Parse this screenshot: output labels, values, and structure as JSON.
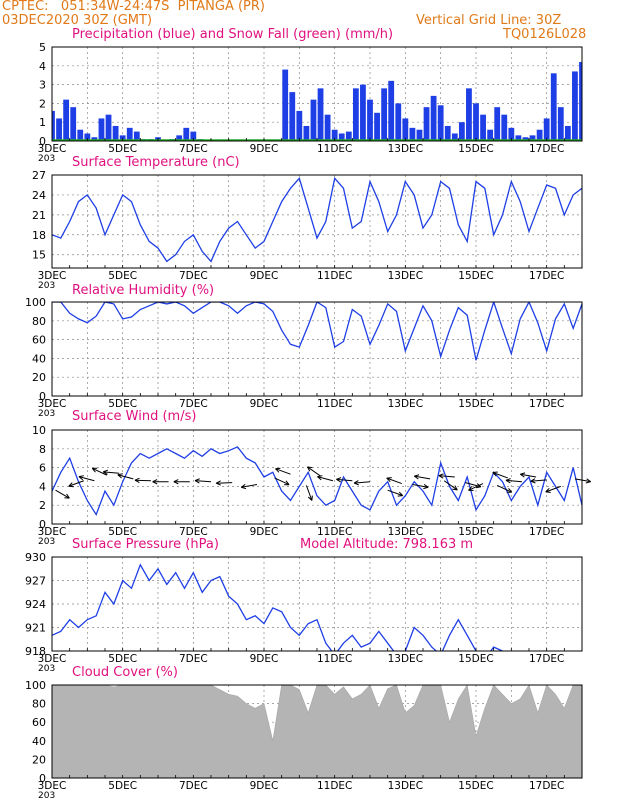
{
  "header": {
    "line1": "CPTEC:   051:34W-24:47S  PITANGA (PR)",
    "line2": "03DEC2020 30Z (GMT)",
    "grid_note": "Vertical Grid Line: 30Z",
    "code": "TQ0126L028"
  },
  "colors": {
    "header": "#e07a1a",
    "title": "#e0117f",
    "precip": "#1f3fe6",
    "snow": "#22aa22",
    "line": "#1f3fe6",
    "cloud": "#b4b4b4",
    "grid": "#888888"
  },
  "year_fragment": "203",
  "chart_data": [
    {
      "type": "bar",
      "title": "Precipitation (blue) and Snow Fall (green) (mm/h)",
      "ylim": [
        0,
        5
      ],
      "yticks": [
        "0",
        "1",
        "2",
        "3",
        "4",
        "5"
      ],
      "xlabels": [
        "3DEC",
        "5DEC",
        "7DEC",
        "9DEC",
        "11DEC",
        "13DEC",
        "15DEC",
        "17DEC"
      ],
      "series": [
        {
          "name": "Precipitation",
          "x": [
            3.0,
            3.2,
            3.4,
            3.6,
            3.8,
            4.0,
            4.2,
            4.4,
            4.6,
            4.8,
            5.0,
            5.2,
            5.4,
            5.6,
            5.8,
            6.0,
            6.2,
            6.4,
            6.6,
            6.8,
            7.0,
            7.2,
            7.4,
            7.6,
            7.8,
            8.0,
            8.2,
            8.4,
            8.6,
            8.8,
            9.0,
            9.2,
            9.4,
            9.6,
            9.8,
            10.0,
            10.2,
            10.4,
            10.6,
            10.8,
            11.0,
            11.2,
            11.4,
            11.6,
            11.8,
            12.0,
            12.2,
            12.4,
            12.6,
            12.8,
            13.0,
            13.2,
            13.4,
            13.6,
            13.8,
            14.0,
            14.2,
            14.4,
            14.6,
            14.8,
            15.0,
            15.2,
            15.4,
            15.6,
            15.8,
            16.0,
            16.2,
            16.4,
            16.6,
            16.8,
            17.0,
            17.2,
            17.4,
            17.6,
            17.8,
            18.0
          ],
          "values": [
            1.6,
            1.2,
            2.2,
            1.8,
            0.6,
            0.4,
            0.2,
            1.2,
            1.4,
            0.8,
            0.3,
            0.7,
            0.5,
            0.1,
            0.1,
            0.2,
            0.0,
            0.1,
            0.3,
            0.7,
            0.5,
            0.1,
            0.0,
            0.0,
            0.0,
            0.0,
            0.0,
            0.0,
            0.0,
            0.0,
            0.0,
            0.0,
            0.0,
            3.8,
            2.6,
            1.6,
            0.8,
            2.2,
            2.8,
            1.4,
            0.6,
            0.4,
            0.5,
            2.8,
            3.0,
            2.2,
            1.5,
            2.8,
            3.2,
            2.0,
            1.2,
            0.7,
            0.6,
            1.8,
            2.4,
            1.9,
            0.8,
            0.4,
            1.0,
            2.8,
            2.0,
            1.4,
            0.6,
            1.8,
            1.4,
            0.7,
            0.3,
            0.2,
            0.3,
            0.6,
            1.2,
            3.6,
            1.8,
            0.8,
            3.7,
            4.2
          ]
        },
        {
          "name": "Snow Fall",
          "values": [
            0.05
          ]
        }
      ]
    },
    {
      "type": "line",
      "title": "Surface Temperature (nC)",
      "ylim": [
        13,
        27
      ],
      "yticks": [
        "15",
        "18",
        "21",
        "24",
        "27"
      ],
      "xlabels": [
        "3DEC",
        "5DEC",
        "7DEC",
        "9DEC",
        "11DEC",
        "13DEC",
        "15DEC",
        "17DEC"
      ],
      "x": [
        3.0,
        3.25,
        3.5,
        3.75,
        4.0,
        4.25,
        4.5,
        4.75,
        5.0,
        5.25,
        5.5,
        5.75,
        6.0,
        6.25,
        6.5,
        6.75,
        7.0,
        7.25,
        7.5,
        7.75,
        8.0,
        8.25,
        8.5,
        8.75,
        9.0,
        9.25,
        9.5,
        9.75,
        10.0,
        10.25,
        10.5,
        10.75,
        11.0,
        11.25,
        11.5,
        11.75,
        12.0,
        12.25,
        12.5,
        12.75,
        13.0,
        13.25,
        13.5,
        13.75,
        14.0,
        14.25,
        14.5,
        14.75,
        15.0,
        15.25,
        15.5,
        15.75,
        16.0,
        16.25,
        16.5,
        16.75,
        17.0,
        17.25,
        17.5,
        17.75,
        18.0
      ],
      "values": [
        18,
        17.5,
        20,
        23,
        24,
        22,
        18,
        21,
        24,
        23,
        19.5,
        17,
        16,
        14,
        15,
        17,
        18,
        15.5,
        14,
        17,
        19,
        20,
        18,
        16,
        17,
        20,
        23,
        25,
        26.5,
        22,
        17.5,
        20,
        26.5,
        25,
        19,
        20,
        26,
        23,
        18.5,
        21,
        26,
        24,
        19,
        21,
        26,
        25,
        19.5,
        17,
        26,
        25,
        18,
        21,
        26,
        23,
        18.5,
        22,
        25.5,
        25,
        21,
        24,
        25
      ]
    },
    {
      "type": "line",
      "title": "Relative Humidity (%)",
      "ylim": [
        0,
        100
      ],
      "yticks": [
        "0",
        "20",
        "40",
        "60",
        "80",
        "100"
      ],
      "xlabels": [
        "3DEC",
        "5DEC",
        "7DEC",
        "9DEC",
        "11DEC",
        "13DEC",
        "15DEC",
        "17DEC"
      ],
      "x": [
        3.0,
        3.25,
        3.5,
        3.75,
        4.0,
        4.25,
        4.5,
        4.75,
        5.0,
        5.25,
        5.5,
        5.75,
        6.0,
        6.25,
        6.5,
        6.75,
        7.0,
        7.25,
        7.5,
        7.75,
        8.0,
        8.25,
        8.5,
        8.75,
        9.0,
        9.25,
        9.5,
        9.75,
        10.0,
        10.25,
        10.5,
        10.75,
        11.0,
        11.25,
        11.5,
        11.75,
        12.0,
        12.25,
        12.5,
        12.75,
        13.0,
        13.25,
        13.5,
        13.75,
        14.0,
        14.25,
        14.5,
        14.75,
        15.0,
        15.25,
        15.5,
        15.75,
        16.0,
        16.25,
        16.5,
        16.75,
        17.0,
        17.25,
        17.5,
        17.75,
        18.0
      ],
      "values": [
        100,
        100,
        88,
        82,
        78,
        85,
        100,
        98,
        82,
        84,
        92,
        96,
        100,
        98,
        100,
        96,
        88,
        94,
        100,
        100,
        96,
        88,
        96,
        100,
        98,
        90,
        70,
        55,
        52,
        75,
        100,
        94,
        52,
        58,
        92,
        85,
        55,
        75,
        98,
        90,
        48,
        72,
        96,
        80,
        42,
        70,
        94,
        86,
        38,
        70,
        100,
        72,
        45,
        82,
        100,
        78,
        48,
        82,
        98,
        72,
        98
      ]
    },
    {
      "type": "line",
      "title": "Surface Wind (m/s)",
      "ylim": [
        0,
        10
      ],
      "yticks": [
        "0",
        "2",
        "4",
        "6",
        "8",
        "10"
      ],
      "xlabels": [
        "3DEC",
        "5DEC",
        "7DEC",
        "9DEC",
        "11DEC",
        "13DEC",
        "15DEC",
        "17DEC"
      ],
      "x": [
        3.0,
        3.25,
        3.5,
        3.75,
        4.0,
        4.25,
        4.5,
        4.75,
        5.0,
        5.25,
        5.5,
        5.75,
        6.0,
        6.25,
        6.5,
        6.75,
        7.0,
        7.25,
        7.5,
        7.75,
        8.0,
        8.25,
        8.5,
        8.75,
        9.0,
        9.25,
        9.5,
        9.75,
        10.0,
        10.25,
        10.5,
        10.75,
        11.0,
        11.25,
        11.5,
        11.75,
        12.0,
        12.25,
        12.5,
        12.75,
        13.0,
        13.25,
        13.5,
        13.75,
        14.0,
        14.25,
        14.5,
        14.75,
        15.0,
        15.25,
        15.5,
        15.75,
        16.0,
        16.25,
        16.5,
        16.75,
        17.0,
        17.25,
        17.5,
        17.75,
        18.0
      ],
      "values": [
        3.5,
        5.5,
        7.0,
        4.5,
        2.5,
        1.0,
        3.5,
        2.0,
        4.5,
        6.5,
        7.5,
        7.0,
        7.5,
        8.0,
        7.5,
        7.0,
        7.8,
        7.2,
        8.0,
        7.5,
        7.8,
        8.2,
        7.0,
        6.5,
        5.0,
        5.5,
        3.5,
        2.5,
        4.0,
        5.5,
        3.0,
        2.0,
        2.5,
        5.0,
        3.5,
        2.0,
        1.5,
        3.5,
        4.5,
        2.0,
        3.0,
        4.5,
        3.5,
        2.0,
        6.5,
        4.0,
        2.5,
        5.0,
        1.5,
        3.0,
        5.5,
        4.5,
        2.5,
        4.0,
        5.0,
        2.0,
        5.5,
        4.0,
        2.5,
        6.0,
        2.0
      ],
      "vectors": [
        [
          3.1,
          3.6,
          -30
        ],
        [
          3.9,
          4.6,
          200
        ],
        [
          4.2,
          4.6,
          165
        ],
        [
          4.55,
          5.2,
          155
        ],
        [
          4.9,
          5.4,
          175
        ],
        [
          5.3,
          4.8,
          165
        ],
        [
          5.8,
          4.6,
          178
        ],
        [
          6.3,
          4.5,
          180
        ],
        [
          6.9,
          4.5,
          180
        ],
        [
          7.5,
          4.5,
          176
        ],
        [
          8.1,
          4.4,
          182
        ],
        [
          8.8,
          4.2,
          190
        ],
        [
          9.3,
          4.9,
          -25
        ],
        [
          9.75,
          5.3,
          160
        ],
        [
          10.2,
          4.1,
          -70
        ],
        [
          10.6,
          5.1,
          145
        ],
        [
          10.95,
          4.6,
          165
        ],
        [
          11.5,
          4.6,
          175
        ],
        [
          12.0,
          4.5,
          185
        ],
        [
          12.5,
          3.6,
          -20
        ],
        [
          12.9,
          4.3,
          160
        ],
        [
          13.2,
          4.2,
          -10
        ],
        [
          13.7,
          4.8,
          170
        ],
        [
          14.1,
          4.6,
          -35
        ],
        [
          14.4,
          5.0,
          175
        ],
        [
          14.7,
          4.4,
          -15
        ],
        [
          15.2,
          4.3,
          205
        ],
        [
          15.6,
          4.1,
          -25
        ],
        [
          15.9,
          4.9,
          160
        ],
        [
          16.3,
          4.5,
          175
        ],
        [
          16.7,
          5.0,
          170
        ],
        [
          17.0,
          4.7,
          185
        ],
        [
          17.4,
          4.0,
          200
        ],
        [
          17.8,
          4.8,
          -10
        ]
      ]
    },
    {
      "type": "line",
      "title": "Surface Pressure (hPa)",
      "annotation": "Model Altitude: 798.163 m",
      "ylim": [
        918,
        930
      ],
      "yticks": [
        "918",
        "921",
        "924",
        "927",
        "930"
      ],
      "xlabels": [
        "3DEC",
        "5DEC",
        "7DEC",
        "9DEC",
        "11DEC",
        "13DEC",
        "15DEC",
        "17DEC"
      ],
      "x": [
        3.0,
        3.25,
        3.5,
        3.75,
        4.0,
        4.25,
        4.5,
        4.75,
        5.0,
        5.25,
        5.5,
        5.75,
        6.0,
        6.25,
        6.5,
        6.75,
        7.0,
        7.25,
        7.5,
        7.75,
        8.0,
        8.25,
        8.5,
        8.75,
        9.0,
        9.25,
        9.5,
        9.75,
        10.0,
        10.25,
        10.5,
        10.75,
        11.0,
        11.25,
        11.5,
        11.75,
        12.0,
        12.25,
        12.5,
        12.75,
        13.0,
        13.25,
        13.5,
        13.75,
        14.0,
        14.25,
        14.5,
        14.75,
        15.0,
        15.25,
        15.5,
        15.75,
        16.0,
        16.25,
        16.5,
        16.75,
        17.0,
        17.25,
        17.5,
        17.75,
        18.0
      ],
      "values": [
        920,
        920.5,
        922,
        921,
        922,
        922.5,
        925.5,
        924,
        927,
        926,
        929,
        927,
        928.5,
        926.5,
        928,
        926,
        928,
        925.5,
        927,
        927.5,
        925,
        924,
        922,
        922.5,
        921.5,
        923.5,
        923,
        921,
        920,
        921.5,
        922,
        919,
        917.5,
        919,
        920,
        918.5,
        919,
        920.5,
        919,
        917.5,
        918,
        921,
        920,
        918.5,
        917.5,
        920,
        922,
        920,
        918,
        917,
        918.5,
        918,
        917.5,
        917,
        918,
        917.5,
        917,
        917.5,
        917,
        917,
        917
      ]
    },
    {
      "type": "area",
      "title": "Cloud Cover (%)",
      "ylim": [
        0,
        100
      ],
      "yticks": [
        "0",
        "20",
        "40",
        "60",
        "80",
        "100"
      ],
      "xlabels": [
        "3DEC",
        "5DEC",
        "7DEC",
        "9DEC",
        "11DEC",
        "13DEC",
        "15DEC",
        "17DEC"
      ],
      "x": [
        3.0,
        3.25,
        3.5,
        3.75,
        4.0,
        4.25,
        4.5,
        4.75,
        5.0,
        5.25,
        5.5,
        5.75,
        6.0,
        6.25,
        6.5,
        6.75,
        7.0,
        7.25,
        7.5,
        7.75,
        8.0,
        8.25,
        8.5,
        8.75,
        9.0,
        9.25,
        9.5,
        9.75,
        10.0,
        10.25,
        10.5,
        10.75,
        11.0,
        11.25,
        11.5,
        11.75,
        12.0,
        12.25,
        12.5,
        12.75,
        13.0,
        13.25,
        13.5,
        13.75,
        14.0,
        14.25,
        14.5,
        14.75,
        15.0,
        15.25,
        15.5,
        15.75,
        16.0,
        16.25,
        16.5,
        16.75,
        17.0,
        17.25,
        17.5,
        17.75,
        18.0
      ],
      "values": [
        100,
        100,
        100,
        100,
        100,
        100,
        100,
        98,
        100,
        100,
        100,
        100,
        100,
        100,
        100,
        100,
        100,
        100,
        100,
        95,
        90,
        88,
        80,
        75,
        80,
        40,
        100,
        100,
        95,
        70,
        100,
        100,
        90,
        98,
        85,
        90,
        100,
        75,
        96,
        100,
        70,
        78,
        100,
        100,
        100,
        60,
        85,
        100,
        45,
        75,
        100,
        90,
        80,
        85,
        100,
        70,
        100,
        90,
        75,
        100,
        100
      ]
    }
  ]
}
